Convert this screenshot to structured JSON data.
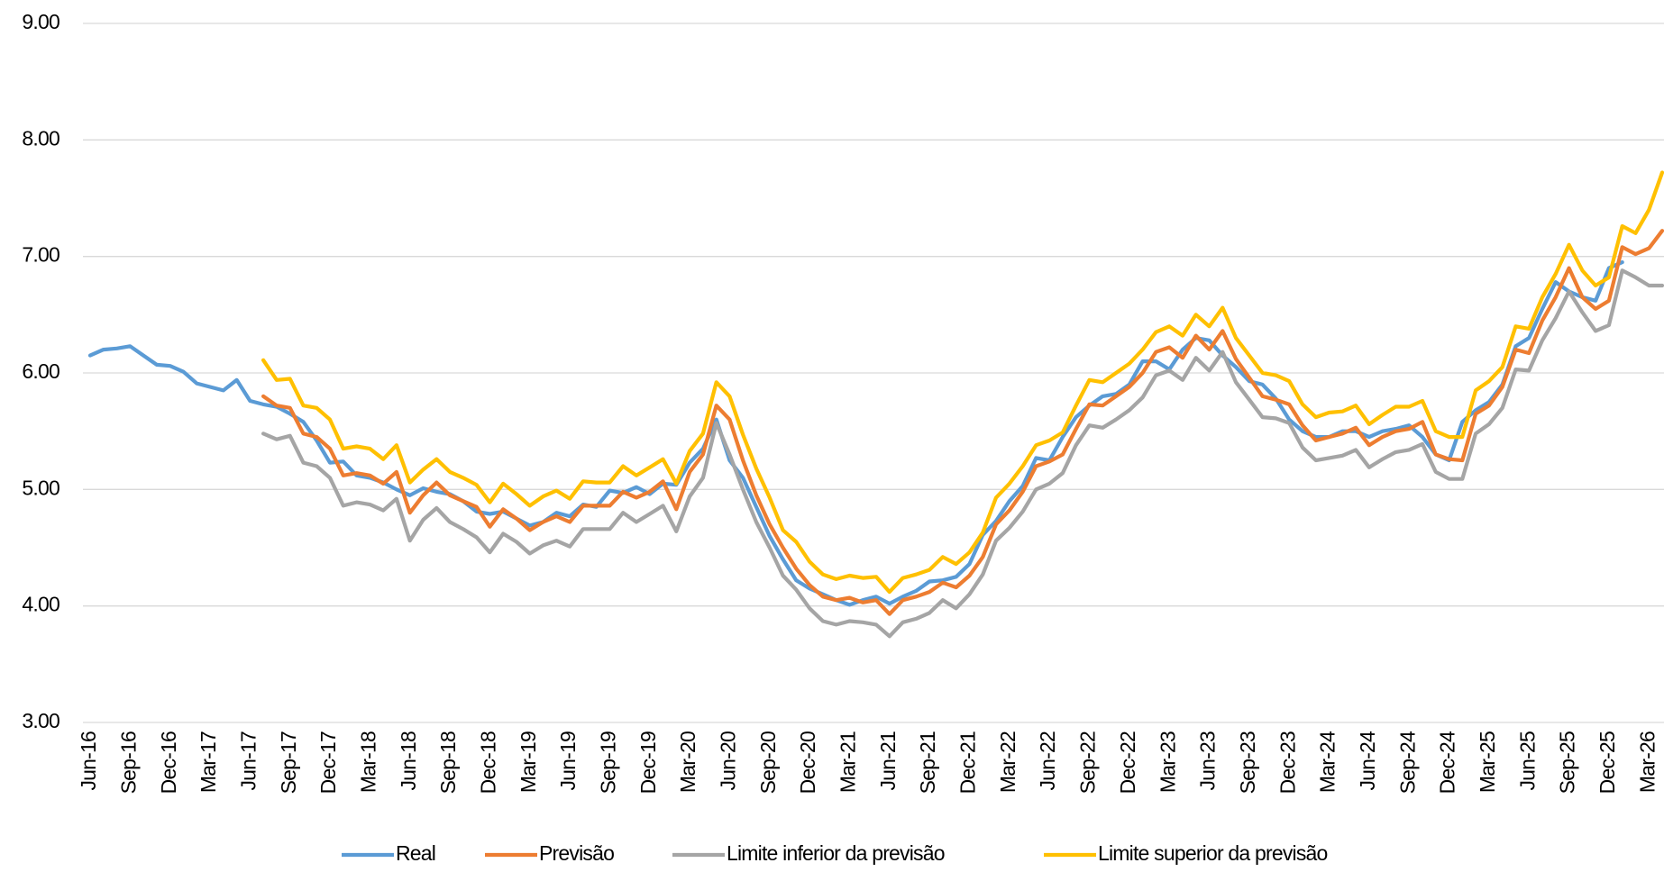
{
  "chart_data": {
    "type": "line",
    "categories": [
      "Jun-16",
      null,
      null,
      "Sep-16",
      null,
      null,
      "Dec-16",
      null,
      null,
      "Mar-17",
      null,
      null,
      "Jun-17",
      null,
      null,
      "Sep-17",
      null,
      null,
      "Dec-17",
      null,
      null,
      "Mar-18",
      null,
      null,
      "Jun-18",
      null,
      null,
      "Sep-18",
      null,
      null,
      "Dec-18",
      null,
      null,
      "Mar-19",
      null,
      null,
      "Jun-19",
      null,
      null,
      "Sep-19",
      null,
      null,
      "Dec-19",
      null,
      null,
      "Mar-20",
      null,
      null,
      "Jun-20",
      null,
      null,
      "Sep-20",
      null,
      null,
      "Dec-20",
      null,
      null,
      "Mar-21",
      null,
      null,
      "Jun-21",
      null,
      null,
      "Sep-21",
      null,
      null,
      "Dec-21",
      null,
      null,
      "Mar-22",
      null,
      null,
      "Jun-22",
      null,
      null,
      "Sep-22",
      null,
      null,
      "Dec-22",
      null,
      null,
      "Mar-23",
      null,
      null,
      "Jun-23",
      null,
      null,
      "Sep-23",
      null,
      null,
      "Dec-23",
      null,
      null,
      "Mar-24",
      null,
      null,
      "Jun-24",
      null,
      null,
      "Sep-24",
      null,
      null,
      "Dec-24",
      null,
      null,
      "Mar-25",
      null,
      null,
      "Jun-25",
      null,
      null,
      "Sep-25",
      null,
      null,
      "Dec-25",
      null,
      null,
      "Mar-26",
      null
    ],
    "ylim": [
      3,
      9
    ],
    "yticks": [
      {
        "value": 3,
        "label": "3.00"
      },
      {
        "value": 4,
        "label": "4.00"
      },
      {
        "value": 5,
        "label": "5.00"
      },
      {
        "value": 6,
        "label": "6.00"
      },
      {
        "value": 7,
        "label": "7.00"
      },
      {
        "value": 8,
        "label": "8.00"
      },
      {
        "value": 9,
        "label": "9.00"
      }
    ],
    "grid": true,
    "legend": "bottom",
    "series": [
      {
        "name": "Real",
        "color": "#5b9bd5",
        "values": [
          6.15,
          6.2,
          6.21,
          6.23,
          6.15,
          6.07,
          6.06,
          6.01,
          5.91,
          5.88,
          5.85,
          5.94,
          5.76,
          5.73,
          5.71,
          5.65,
          5.58,
          5.42,
          5.23,
          5.24,
          5.12,
          5.1,
          5.06,
          5.0,
          4.95,
          5.01,
          4.98,
          4.96,
          4.9,
          4.81,
          4.79,
          4.81,
          4.75,
          4.69,
          4.72,
          4.8,
          4.77,
          4.87,
          4.85,
          4.99,
          4.97,
          5.02,
          4.96,
          5.05,
          5.04,
          5.23,
          5.35,
          5.6,
          5.25,
          5.1,
          4.85,
          4.6,
          4.4,
          4.22,
          4.15,
          4.1,
          4.05,
          4.01,
          4.05,
          4.08,
          4.02,
          4.08,
          4.13,
          4.21,
          4.22,
          4.25,
          4.36,
          4.61,
          4.73,
          4.9,
          5.03,
          5.27,
          5.25,
          5.45,
          5.62,
          5.72,
          5.8,
          5.82,
          5.9,
          6.1,
          6.1,
          6.03,
          6.2,
          6.3,
          6.28,
          6.15,
          6.05,
          5.93,
          5.9,
          5.78,
          5.6,
          5.5,
          5.45,
          5.45,
          5.5,
          5.5,
          5.45,
          5.5,
          5.52,
          5.55,
          5.45,
          5.3,
          5.25,
          5.58,
          5.68,
          5.75,
          5.9,
          6.23,
          6.3,
          6.55,
          6.78,
          6.7,
          6.65,
          6.62,
          6.9,
          6.95,
          null,
          null,
          null
        ]
      },
      {
        "name": "Previsão",
        "color": "#ed7d31",
        "values": [
          null,
          null,
          null,
          null,
          null,
          null,
          null,
          null,
          null,
          null,
          null,
          null,
          null,
          5.8,
          5.72,
          5.7,
          5.48,
          5.45,
          5.35,
          5.12,
          5.14,
          5.12,
          5.05,
          5.15,
          4.8,
          4.95,
          5.06,
          4.95,
          4.9,
          4.85,
          4.68,
          4.83,
          4.75,
          4.65,
          4.72,
          4.77,
          4.72,
          4.86,
          4.86,
          4.86,
          4.98,
          4.93,
          4.98,
          5.07,
          4.83,
          5.15,
          5.3,
          5.72,
          5.6,
          5.25,
          4.95,
          4.7,
          4.5,
          4.32,
          4.18,
          4.08,
          4.05,
          4.07,
          4.03,
          4.05,
          3.93,
          4.05,
          4.08,
          4.12,
          4.2,
          4.16,
          4.26,
          4.42,
          4.7,
          4.82,
          4.98,
          5.2,
          5.24,
          5.3,
          5.52,
          5.73,
          5.72,
          5.8,
          5.88,
          6.0,
          6.18,
          6.22,
          6.13,
          6.32,
          6.2,
          6.36,
          6.12,
          5.96,
          5.8,
          5.77,
          5.73,
          5.55,
          5.42,
          5.45,
          5.48,
          5.53,
          5.38,
          5.45,
          5.5,
          5.52,
          5.58,
          5.3,
          5.26,
          5.25,
          5.65,
          5.72,
          5.88,
          6.2,
          6.17,
          6.45,
          6.65,
          6.9,
          6.65,
          6.55,
          6.62,
          7.08,
          7.02,
          7.07,
          7.22
        ]
      },
      {
        "name": "Limite inferior da previsão",
        "color": "#a5a5a5",
        "values": [
          null,
          null,
          null,
          null,
          null,
          null,
          null,
          null,
          null,
          null,
          null,
          null,
          null,
          5.48,
          5.43,
          5.46,
          5.23,
          5.2,
          5.1,
          4.86,
          4.89,
          4.87,
          4.82,
          4.92,
          4.56,
          4.74,
          4.84,
          4.72,
          4.66,
          4.59,
          4.46,
          4.62,
          4.55,
          4.45,
          4.52,
          4.56,
          4.51,
          4.66,
          4.66,
          4.66,
          4.8,
          4.72,
          4.79,
          4.86,
          4.64,
          4.94,
          5.1,
          5.57,
          5.3,
          5.0,
          4.72,
          4.5,
          4.26,
          4.14,
          3.98,
          3.87,
          3.84,
          3.87,
          3.86,
          3.84,
          3.74,
          3.86,
          3.89,
          3.94,
          4.05,
          3.98,
          4.1,
          4.27,
          4.56,
          4.67,
          4.81,
          5.0,
          5.05,
          5.14,
          5.38,
          5.55,
          5.53,
          5.6,
          5.68,
          5.79,
          5.98,
          6.02,
          5.94,
          6.13,
          6.02,
          6.18,
          5.92,
          5.77,
          5.62,
          5.61,
          5.57,
          5.36,
          5.25,
          5.27,
          5.29,
          5.34,
          5.19,
          5.26,
          5.32,
          5.34,
          5.39,
          5.15,
          5.09,
          5.09,
          5.48,
          5.56,
          5.7,
          6.03,
          6.02,
          6.28,
          6.47,
          6.7,
          6.52,
          6.36,
          6.41,
          6.88,
          6.82,
          6.75,
          6.75
        ]
      },
      {
        "name": "Limite superior da previsão",
        "color": "#ffc000",
        "values": [
          null,
          null,
          null,
          null,
          null,
          null,
          null,
          null,
          null,
          null,
          null,
          null,
          null,
          6.11,
          5.94,
          5.95,
          5.72,
          5.7,
          5.6,
          5.35,
          5.37,
          5.35,
          5.26,
          5.38,
          5.06,
          5.17,
          5.26,
          5.15,
          5.1,
          5.04,
          4.89,
          5.05,
          4.96,
          4.86,
          4.94,
          4.99,
          4.92,
          5.07,
          5.06,
          5.06,
          5.2,
          5.12,
          5.19,
          5.26,
          5.05,
          5.33,
          5.48,
          5.92,
          5.8,
          5.47,
          5.18,
          4.93,
          4.65,
          4.55,
          4.38,
          4.27,
          4.23,
          4.26,
          4.24,
          4.25,
          4.12,
          4.24,
          4.27,
          4.31,
          4.42,
          4.36,
          4.46,
          4.63,
          4.93,
          5.05,
          5.2,
          5.38,
          5.42,
          5.49,
          5.72,
          5.94,
          5.92,
          6.0,
          6.08,
          6.2,
          6.35,
          6.4,
          6.32,
          6.5,
          6.4,
          6.56,
          6.3,
          6.15,
          6.0,
          5.98,
          5.93,
          5.73,
          5.62,
          5.66,
          5.67,
          5.72,
          5.56,
          5.64,
          5.71,
          5.71,
          5.76,
          5.5,
          5.45,
          5.45,
          5.85,
          5.93,
          6.05,
          6.4,
          6.38,
          6.65,
          6.85,
          7.1,
          6.88,
          6.75,
          6.82,
          7.26,
          7.2,
          7.4,
          7.72
        ]
      }
    ]
  }
}
